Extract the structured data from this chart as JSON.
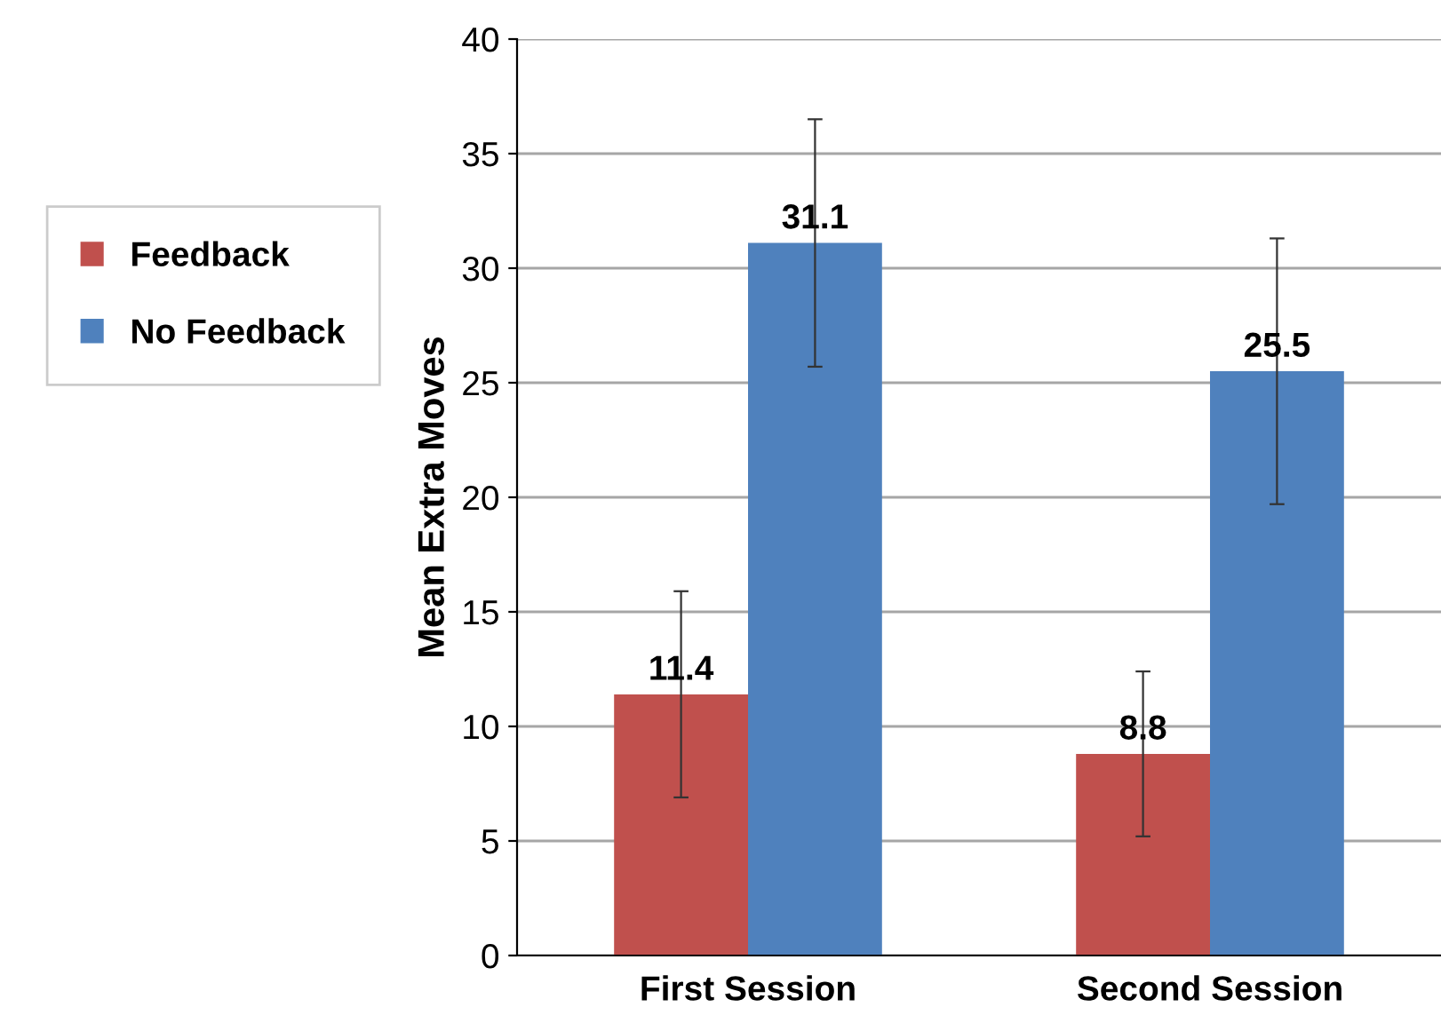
{
  "chart_data": {
    "type": "bar",
    "ylabel": "Mean Extra Moves",
    "categories": [
      "First Session",
      "Second Session"
    ],
    "series": [
      {
        "name": "Feedback",
        "color": "#c0504d",
        "values": [
          11.4,
          8.8
        ],
        "errors": [
          4.5,
          3.6
        ]
      },
      {
        "name": "No Feedback",
        "color": "#4f81bd",
        "values": [
          31.1,
          25.5
        ],
        "errors": [
          5.4,
          5.8
        ]
      }
    ],
    "ylim": [
      0,
      40
    ],
    "yticks": [
      0,
      5,
      10,
      15,
      20,
      25,
      30,
      35,
      40
    ],
    "grid": "y",
    "legend": "left",
    "data_labels": true
  }
}
